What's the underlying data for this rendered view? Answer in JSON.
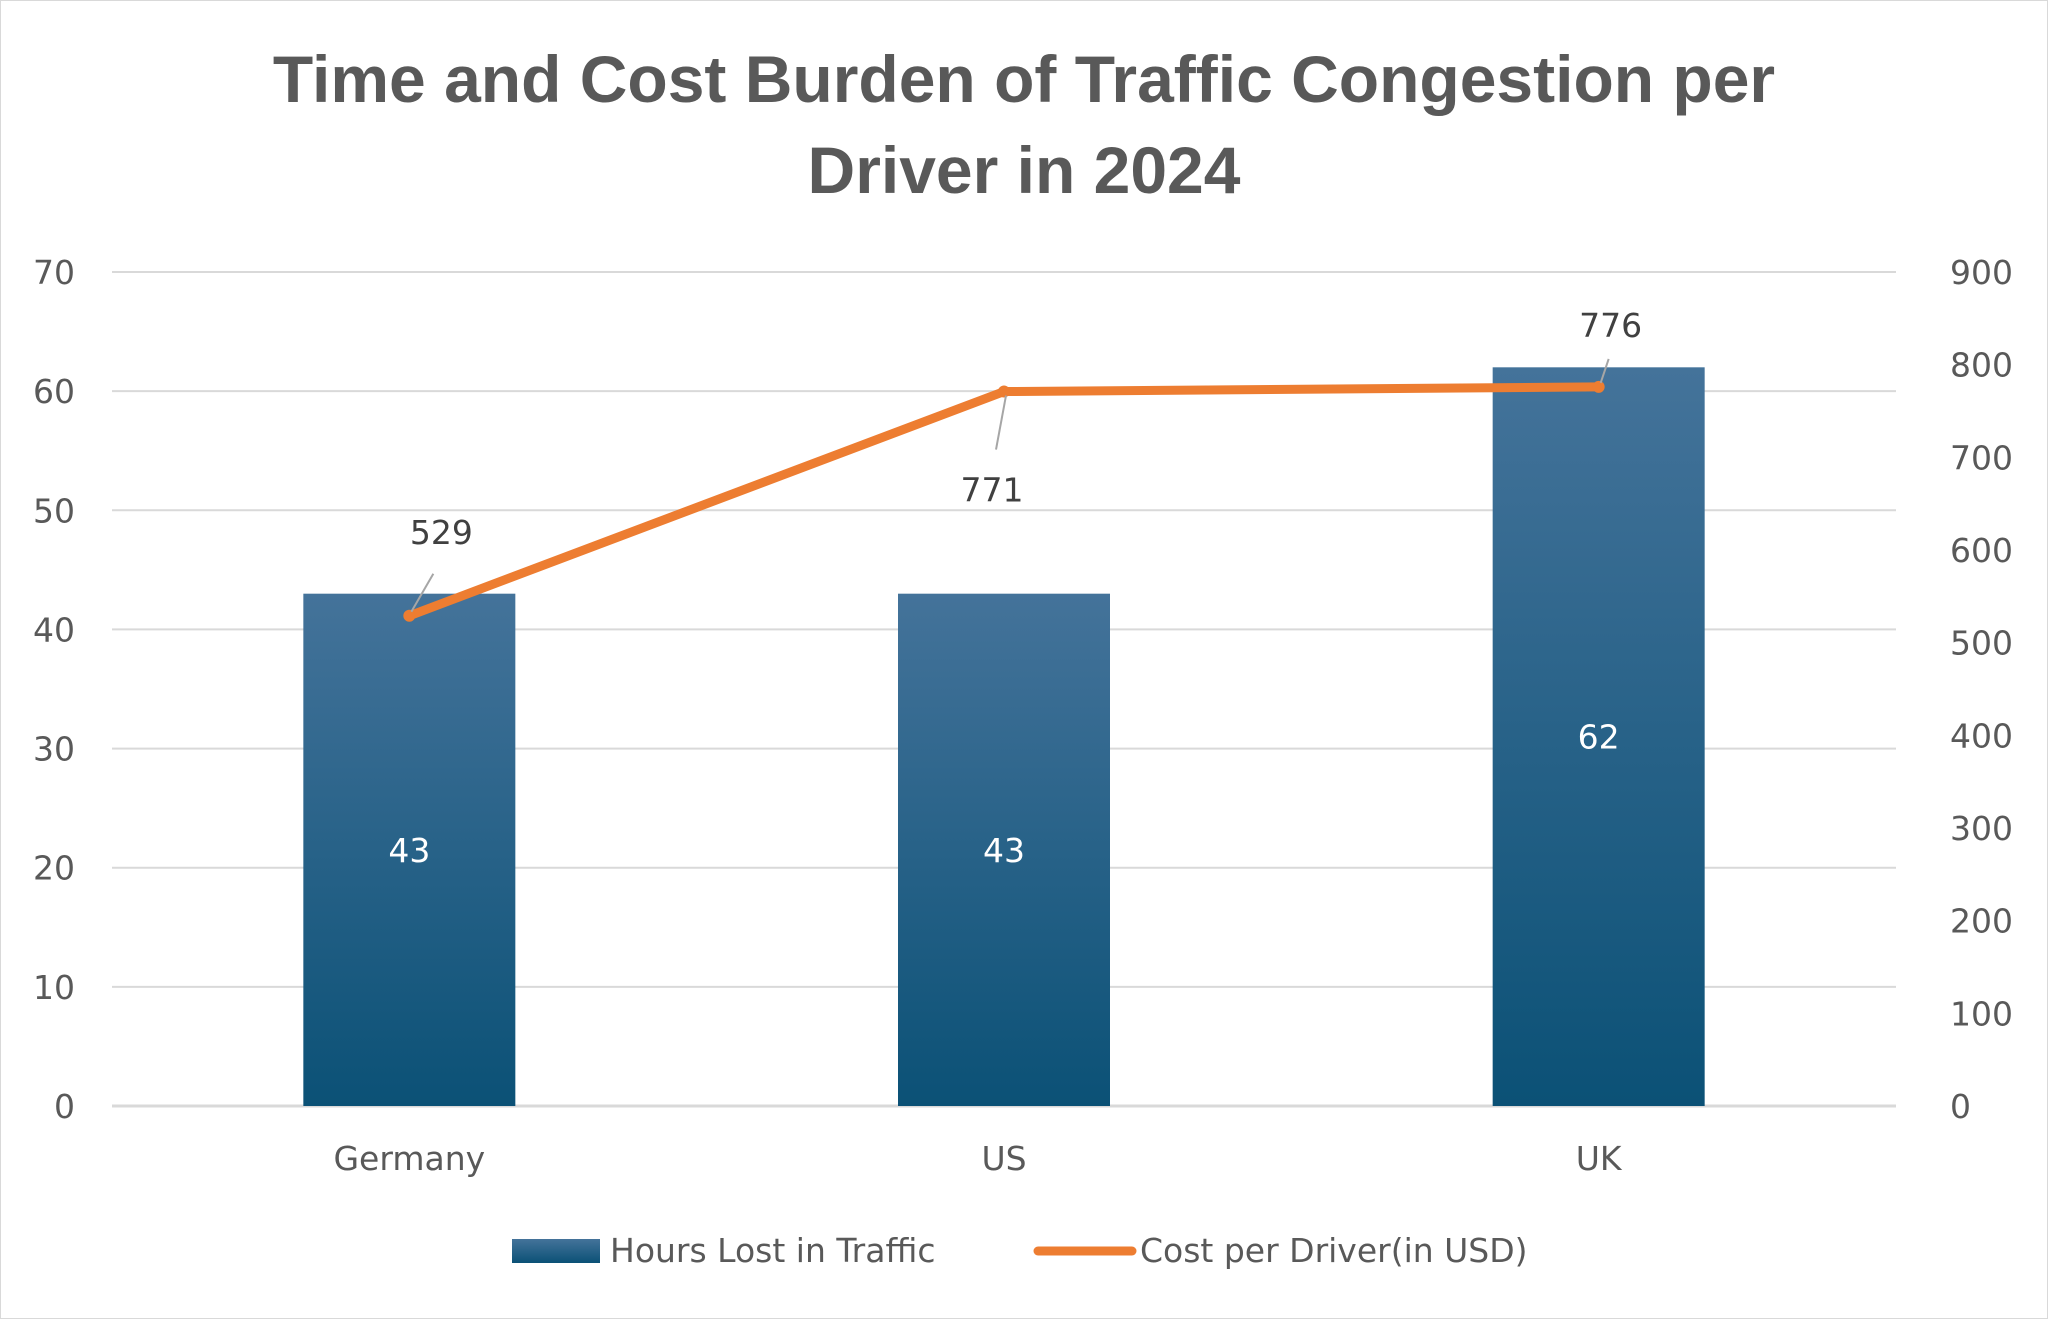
{
  "chart_data": {
    "type": "bar",
    "title_lines": [
      "Time and Cost Burden of Traffic Congestion per",
      "Driver in 2024"
    ],
    "categories": [
      "Germany",
      "US",
      "UK"
    ],
    "series": [
      {
        "name": "Hours Lost in Traffic",
        "kind": "bar",
        "axis": "left",
        "values": [
          43,
          43,
          62
        ]
      },
      {
        "name": "Cost per Driver(in USD)",
        "kind": "line",
        "axis": "right",
        "values": [
          529,
          771,
          776
        ]
      }
    ],
    "y_left": {
      "min": 0,
      "max": 70,
      "step": 10,
      "ticks": [
        "0",
        "10",
        "20",
        "30",
        "40",
        "50",
        "60",
        "70"
      ]
    },
    "y_right": {
      "min": 0,
      "max": 900,
      "step": 100,
      "ticks": [
        "0",
        "100",
        "200",
        "300",
        "400",
        "500",
        "600",
        "700",
        "800",
        "900"
      ]
    },
    "gridlines": true,
    "legend_position": "bottom",
    "colors": {
      "bar_top": "#44739a",
      "bar_bottom": "#0b5176",
      "line": "#ed7d31",
      "grid": "#d9d9d9",
      "leader": "#a6a6a6"
    }
  }
}
